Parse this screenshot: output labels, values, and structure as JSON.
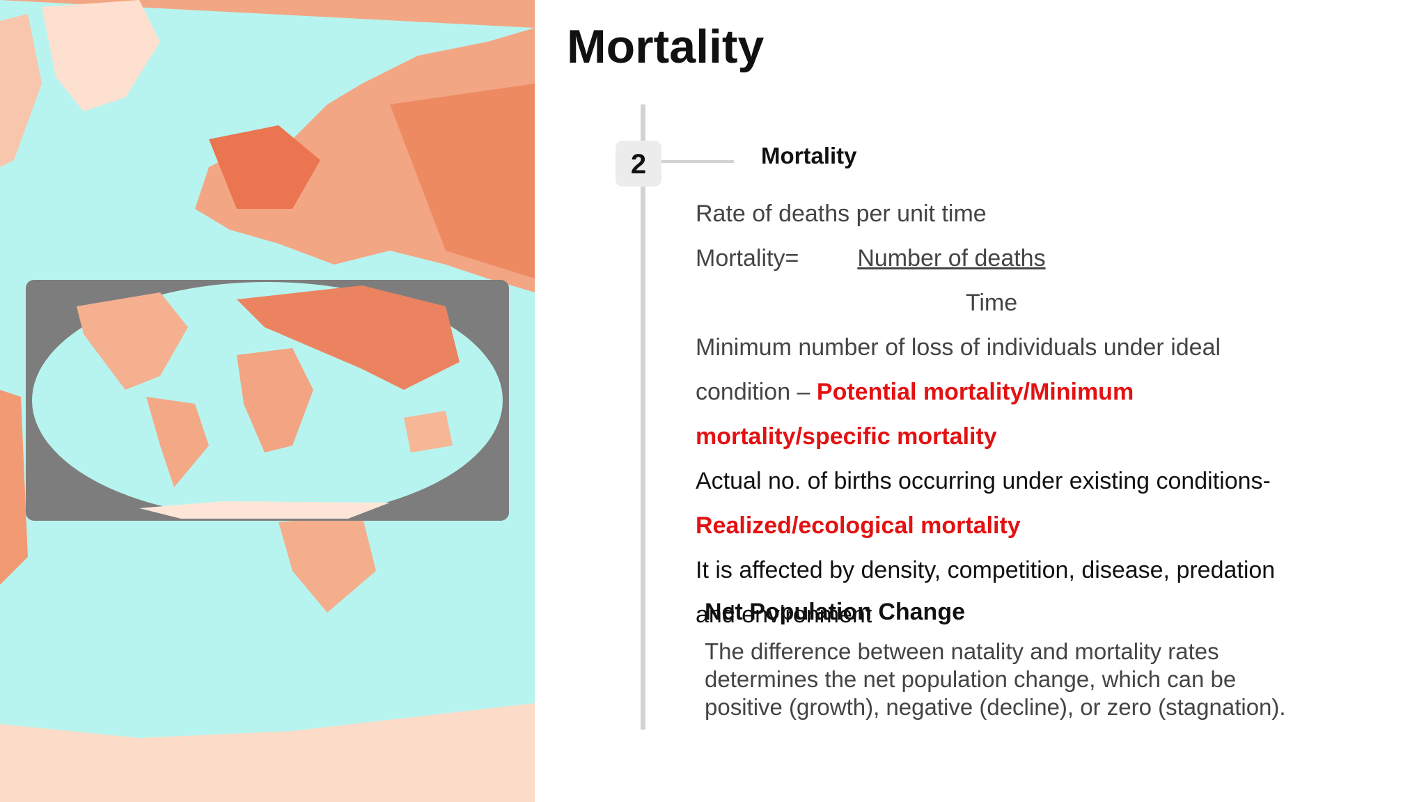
{
  "title": "Mortality",
  "step": {
    "number": "2",
    "heading": "Mortality"
  },
  "lines": [
    {
      "segments": [
        {
          "text": "Rate of deaths per unit time"
        }
      ]
    },
    {
      "segments": [
        {
          "text": "Mortality="
        },
        {
          "text": "Number of deaths",
          "underline": true
        }
      ]
    },
    {
      "segments": [
        {
          "text": "Time"
        }
      ],
      "align": "center"
    },
    {
      "segments": [
        {
          "text": "Minimum number of loss of individuals under ideal"
        }
      ]
    },
    {
      "segments": [
        {
          "text": "condition – "
        },
        {
          "text": "Potential mortality/Minimum",
          "emphasis": true
        }
      ]
    },
    {
      "segments": [
        {
          "text": "mortality/specific mortality",
          "emphasis": true
        }
      ]
    },
    {
      "segments": [
        {
          "text": "Actual no. of births occurring under existing conditions-"
        }
      ],
      "dark": true
    },
    {
      "segments": [
        {
          "text": "Realized/ecological mortality",
          "emphasis": true
        }
      ]
    },
    {
      "segments": [
        {
          "text": "It is affected by density, competition, disease, predation"
        }
      ],
      "dark": true
    },
    {
      "segments": [
        {
          "text": "and environment"
        }
      ],
      "dark": true
    }
  ],
  "net_change": {
    "heading": "Net Population Change",
    "lines": [
      "The difference between natality and mortality rates",
      "determines the net population change, which can be",
      "positive (growth), negative (decline), or zero (stagnation)."
    ]
  }
}
